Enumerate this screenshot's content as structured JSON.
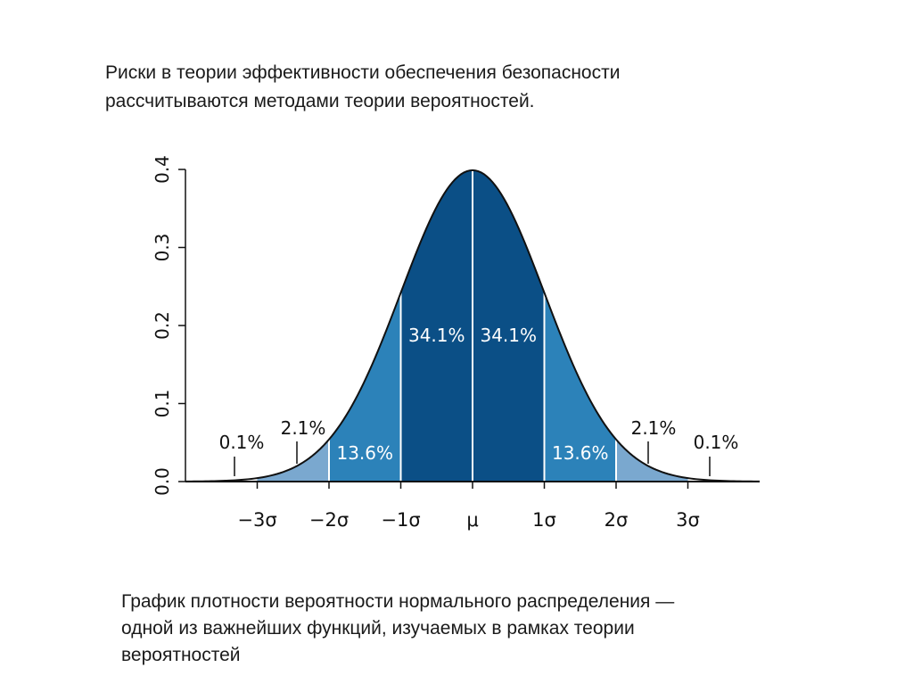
{
  "intro": {
    "line1": "Риски в теории эффективности обеспечения безопасности",
    "line2": "рассчитываются методами теории вероятностей."
  },
  "caption": {
    "line1": "График плотности вероятности нормального распределения —",
    "line2": "одной из важнейших функций, изучаемых в рамках теории",
    "line3": "вероятностей"
  },
  "chart_data": {
    "type": "area",
    "xlim": [
      -4,
      4
    ],
    "ylim": [
      0,
      0.4
    ],
    "y_ticks": [
      {
        "value": 0.0,
        "label": "0.0"
      },
      {
        "value": 0.1,
        "label": "0.1"
      },
      {
        "value": 0.2,
        "label": "0.2"
      },
      {
        "value": 0.3,
        "label": "0.3"
      },
      {
        "value": 0.4,
        "label": "0.4"
      }
    ],
    "x_ticks": [
      {
        "value": -3,
        "label": "−3σ"
      },
      {
        "value": -2,
        "label": "−2σ"
      },
      {
        "value": -1,
        "label": "−1σ"
      },
      {
        "value": 0,
        "label": "μ"
      },
      {
        "value": 1,
        "label": "1σ"
      },
      {
        "value": 2,
        "label": "2σ"
      },
      {
        "value": 3,
        "label": "3σ"
      }
    ],
    "regions": [
      {
        "from": -4,
        "to": -3,
        "percent": "0.1%",
        "color": "#ffffff"
      },
      {
        "from": -3,
        "to": -2,
        "percent": "2.1%",
        "color": "#7aa8cf"
      },
      {
        "from": -2,
        "to": -1,
        "percent": "13.6%",
        "color": "#2c82b9"
      },
      {
        "from": -1,
        "to": 0,
        "percent": "34.1%",
        "color": "#0b4f86"
      },
      {
        "from": 0,
        "to": 1,
        "percent": "34.1%",
        "color": "#0b4f86"
      },
      {
        "from": 1,
        "to": 2,
        "percent": "13.6%",
        "color": "#2c82b9"
      },
      {
        "from": 2,
        "to": 3,
        "percent": "2.1%",
        "color": "#7aa8cf"
      },
      {
        "from": 3,
        "to": 4,
        "percent": "0.1%",
        "color": "#ffffff"
      }
    ],
    "grid": false
  }
}
